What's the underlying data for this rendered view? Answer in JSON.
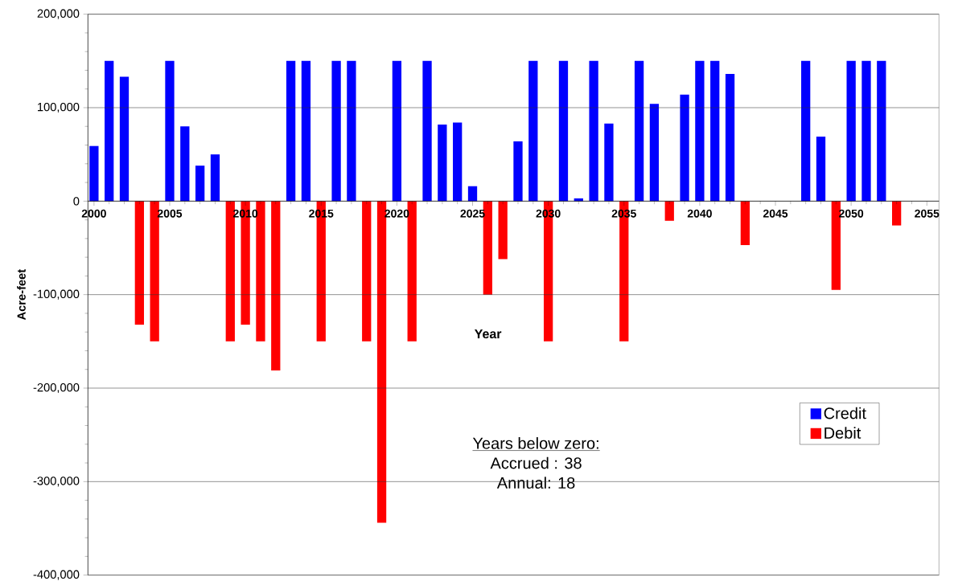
{
  "chart_data": {
    "type": "bar",
    "xlabel": "Year",
    "ylabel": "Acre-feet",
    "series": [
      {
        "name": "Credit",
        "color": "#0000ff",
        "x": [
          2000,
          2001,
          2002,
          2005,
          2006,
          2007,
          2008,
          2013,
          2014,
          2016,
          2017,
          2020,
          2022,
          2023,
          2024,
          2025,
          2028,
          2029,
          2031,
          2032,
          2033,
          2034,
          2036,
          2037,
          2039,
          2040,
          2041,
          2042,
          2047,
          2048,
          2050,
          2051,
          2052
        ],
        "values": [
          59000,
          150000,
          133000,
          150000,
          80000,
          38000,
          50000,
          150000,
          150000,
          150000,
          150000,
          150000,
          150000,
          82000,
          84000,
          16000,
          64000,
          150000,
          150000,
          3000,
          150000,
          83000,
          150000,
          104000,
          114000,
          150000,
          150000,
          136000,
          150000,
          69000,
          150000,
          150000,
          150000
        ]
      },
      {
        "name": "Debit",
        "color": "#ff0000",
        "x": [
          2003,
          2004,
          2009,
          2010,
          2011,
          2012,
          2015,
          2018,
          2019,
          2021,
          2026,
          2027,
          2030,
          2035,
          2038,
          2043,
          2049,
          2053
        ],
        "values": [
          -132000,
          -150000,
          -150000,
          -132000,
          -150000,
          -181000,
          -150000,
          -150000,
          -344000,
          -150000,
          -100000,
          -62000,
          -150000,
          -150000,
          -21000,
          -47000,
          -95000,
          -26000
        ]
      }
    ],
    "xlim": [
      1999.6,
      2055.8
    ],
    "xticks": [
      2000,
      2005,
      2010,
      2015,
      2020,
      2025,
      2030,
      2035,
      2040,
      2045,
      2050,
      2055
    ],
    "ylim": [
      -400000,
      200000
    ],
    "yticks": [
      {
        "value": -400000,
        "label": "-400,000"
      },
      {
        "value": -300000,
        "label": "-300,000"
      },
      {
        "value": -200000,
        "label": "-200,000"
      },
      {
        "value": -100000,
        "label": "-100,000"
      },
      {
        "value": 0,
        "label": "0"
      },
      {
        "value": 100000,
        "label": "100,000"
      },
      {
        "value": 200000,
        "label": "200,000"
      }
    ],
    "grid": "y",
    "legend": "right",
    "annotations": [
      "Years below zero:",
      "Accrued :    38",
      "Annual:      18"
    ]
  }
}
